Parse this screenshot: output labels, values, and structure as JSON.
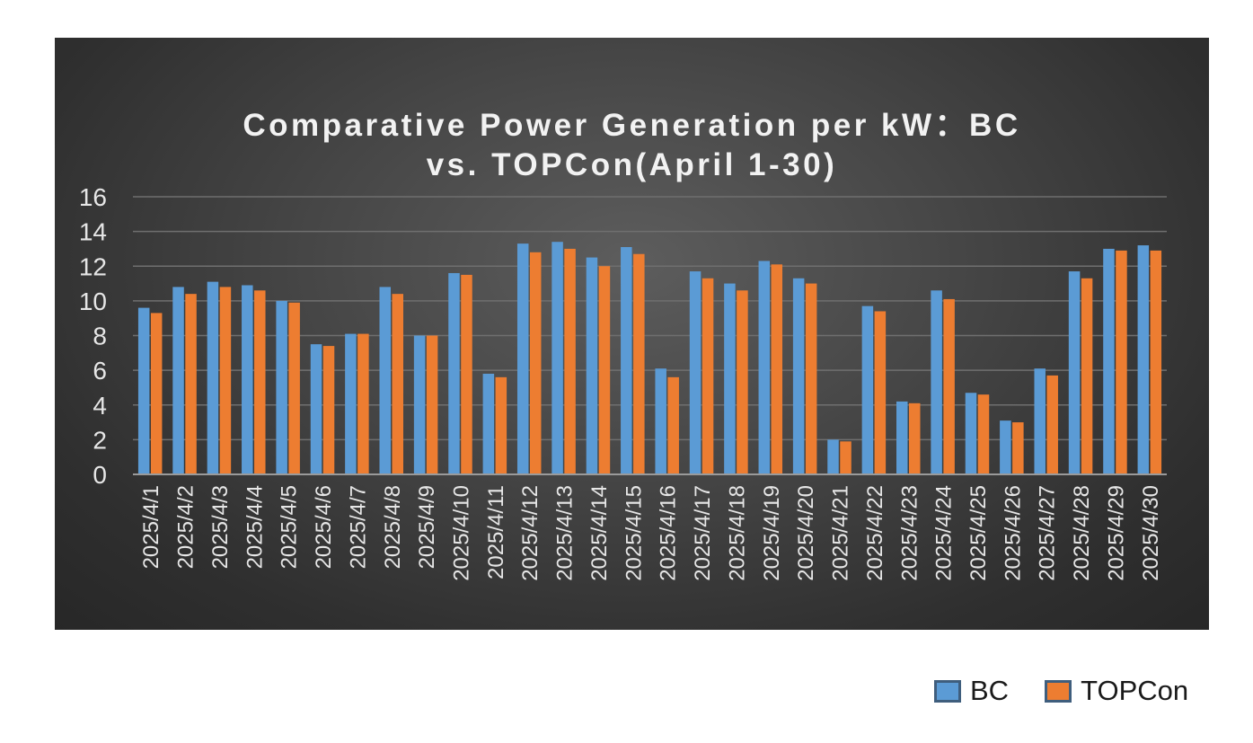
{
  "chart_data": {
    "type": "bar",
    "title_lines": [
      "Comparative Power Generation per kW：BC",
      "vs. TOPCon(April 1-30)"
    ],
    "xlabel": "",
    "ylabel": "",
    "ylim": [
      0,
      16
    ],
    "yticks": [
      0,
      2,
      4,
      6,
      8,
      10,
      12,
      14,
      16
    ],
    "grid": true,
    "legend_position": "bottom-right",
    "categories": [
      "2025/4/1",
      "2025/4/2",
      "2025/4/3",
      "2025/4/4",
      "2025/4/5",
      "2025/4/6",
      "2025/4/7",
      "2025/4/8",
      "2025/4/9",
      "2025/4/10",
      "2025/4/11",
      "2025/4/12",
      "2025/4/13",
      "2025/4/14",
      "2025/4/15",
      "2025/4/16",
      "2025/4/17",
      "2025/4/18",
      "2025/4/19",
      "2025/4/20",
      "2025/4/21",
      "2025/4/22",
      "2025/4/23",
      "2025/4/24",
      "2025/4/25",
      "2025/4/26",
      "2025/4/27",
      "2025/4/28",
      "2025/4/29",
      "2025/4/30"
    ],
    "series": [
      {
        "name": "BC",
        "color": "#5b9bd5",
        "values": [
          9.6,
          10.8,
          11.1,
          10.9,
          10.0,
          7.5,
          8.1,
          10.8,
          8.0,
          11.6,
          5.8,
          13.3,
          13.4,
          12.5,
          13.1,
          6.1,
          11.7,
          11.0,
          12.3,
          11.3,
          2.0,
          9.7,
          4.2,
          10.6,
          4.7,
          3.1,
          6.1,
          11.7,
          13.0,
          13.2
        ]
      },
      {
        "name": "TOPCon",
        "color": "#ed7d31",
        "values": [
          9.3,
          10.4,
          10.8,
          10.6,
          9.9,
          7.4,
          8.1,
          10.4,
          8.0,
          11.5,
          5.6,
          12.8,
          13.0,
          12.0,
          12.7,
          5.6,
          11.3,
          10.6,
          12.1,
          11.0,
          1.9,
          9.4,
          4.1,
          10.1,
          4.6,
          3.0,
          5.7,
          11.3,
          12.9,
          12.9
        ]
      }
    ]
  }
}
